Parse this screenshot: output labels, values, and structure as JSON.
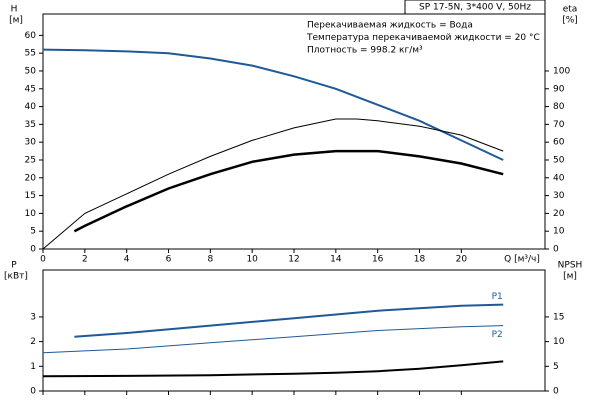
{
  "chart_data": [
    {
      "type": "line",
      "title": "SP 17-5N, 3*400 V, 50Hz",
      "annotations": [
        "Перекачиваемая жидкость = Вода",
        "Температура перекачиваемой жидкости = 20 °C",
        "Плотность = 998.2 кг/м³"
      ],
      "xlabel": "Q [м³/ч]",
      "ylabel": "H",
      "yunit": "[м]",
      "y2label": "eta",
      "y2unit": "[%]",
      "xlim": [
        0,
        24
      ],
      "xticks": [
        0,
        2,
        4,
        6,
        8,
        10,
        12,
        14,
        16,
        18,
        20
      ],
      "xtick_labels": true,
      "ylim": [
        0,
        66
      ],
      "yticks": [
        0,
        5,
        10,
        15,
        20,
        25,
        30,
        35,
        40,
        45,
        50,
        55,
        60
      ],
      "y2lim": [
        0,
        132
      ],
      "y2ticks": [
        0,
        10,
        20,
        30,
        40,
        50,
        60,
        70,
        80,
        90,
        100
      ],
      "grid": false,
      "series": [
        {
          "color": "#1f5a96",
          "width": 2,
          "x": [
            0,
            2,
            4,
            6,
            8,
            10,
            12,
            14,
            16,
            18,
            20,
            22
          ],
          "values": [
            56,
            55.8,
            55.5,
            55,
            53.5,
            51.5,
            48.5,
            45,
            40.5,
            36,
            30.5,
            25
          ]
        },
        {
          "color": "#000000",
          "width": 1,
          "axis": "y2",
          "x": [
            0,
            2,
            4,
            6,
            8,
            10,
            12,
            14,
            15,
            16,
            18,
            20,
            22
          ],
          "values": [
            0,
            20,
            31,
            42,
            52,
            61,
            68,
            73,
            73,
            72,
            69,
            64,
            55
          ]
        },
        {
          "color": "#000000",
          "width": 2.5,
          "axis": "y2",
          "x": [
            1.5,
            2,
            4,
            6,
            8,
            10,
            12,
            14,
            16,
            18,
            20,
            22
          ],
          "values": [
            10,
            13,
            24,
            34,
            42,
            49,
            53,
            55,
            55,
            52,
            48,
            42
          ]
        }
      ]
    },
    {
      "type": "line",
      "ylabel": "P",
      "yunit": "[кВт]",
      "y2label": "NPSH",
      "y2unit": "[м]",
      "xlim": [
        0,
        24
      ],
      "xticks": [
        0,
        2,
        4,
        6,
        8,
        10,
        12,
        14,
        16,
        18,
        20
      ],
      "xtick_labels": false,
      "ylim": [
        0,
        4.9
      ],
      "yticks": [
        0,
        1,
        2,
        3
      ],
      "y2lim": [
        0,
        24.5
      ],
      "y2ticks": [
        0,
        5,
        10,
        15
      ],
      "grid": false,
      "series": [
        {
          "name": "P1",
          "color": "#1f5a96",
          "width": 2,
          "x": [
            1.5,
            4,
            8,
            12,
            16,
            20,
            22
          ],
          "values": [
            2.2,
            2.35,
            2.65,
            2.95,
            3.25,
            3.45,
            3.5
          ]
        },
        {
          "name": "P2",
          "color": "#1f5a96",
          "width": 1,
          "x": [
            0,
            4,
            8,
            12,
            16,
            20,
            22
          ],
          "values": [
            1.55,
            1.7,
            1.95,
            2.2,
            2.45,
            2.6,
            2.65
          ]
        },
        {
          "color": "#000000",
          "width": 2,
          "axis": "y2",
          "x": [
            0,
            4,
            8,
            12,
            14,
            16,
            18,
            20,
            22
          ],
          "values": [
            3,
            3.05,
            3.2,
            3.5,
            3.7,
            4,
            4.5,
            5.2,
            6
          ]
        }
      ]
    }
  ]
}
